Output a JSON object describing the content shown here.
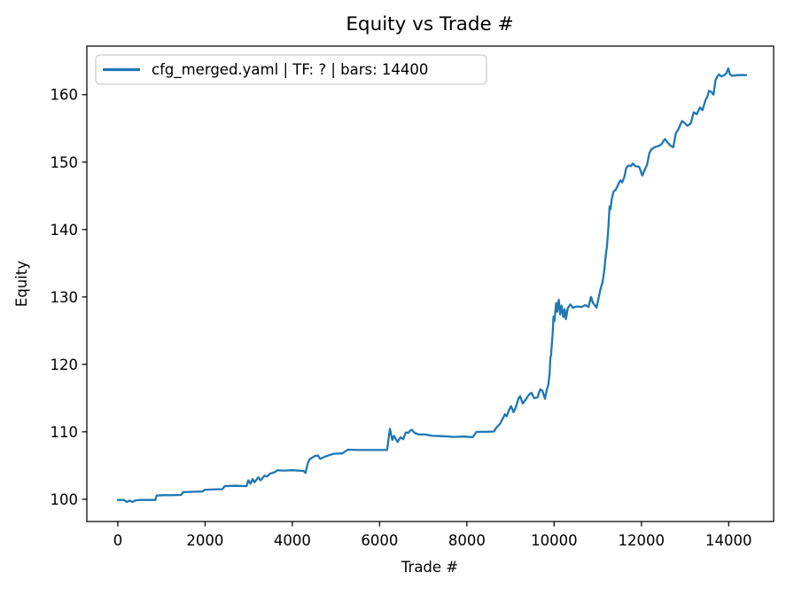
{
  "figure": {
    "background": "#ffffff",
    "spine_color": "#000000",
    "text_color": "#000000"
  },
  "chart_data": {
    "type": "line",
    "title": "Equity vs Trade #",
    "xlabel": "Trade #",
    "ylabel": "Equity",
    "xlim": [
      -710,
      15030
    ],
    "ylim": [
      96.7,
      167.2
    ],
    "xticks": [
      0,
      2000,
      4000,
      6000,
      8000,
      10000,
      12000,
      14000
    ],
    "yticks": [
      100,
      110,
      120,
      130,
      140,
      150,
      160
    ],
    "grid": false,
    "legend": {
      "position": "upper left",
      "entries": [
        {
          "label": "cfg_merged.yaml | TF: ? | bars: 14400",
          "color": "#1f77b4"
        }
      ]
    },
    "series": [
      {
        "name": "cfg_merged.yaml | TF: ? | bars: 14400",
        "color": "#1f77b4",
        "points": [
          [
            0,
            99.9
          ],
          [
            140,
            99.9
          ],
          [
            210,
            99.6
          ],
          [
            270,
            99.8
          ],
          [
            340,
            99.6
          ],
          [
            410,
            99.85
          ],
          [
            520,
            99.9
          ],
          [
            700,
            99.9
          ],
          [
            860,
            99.9
          ],
          [
            890,
            100.55
          ],
          [
            1050,
            100.6
          ],
          [
            1250,
            100.6
          ],
          [
            1450,
            100.65
          ],
          [
            1500,
            101.05
          ],
          [
            1700,
            101.1
          ],
          [
            1940,
            101.15
          ],
          [
            1990,
            101.4
          ],
          [
            2150,
            101.45
          ],
          [
            2400,
            101.5
          ],
          [
            2450,
            101.95
          ],
          [
            2700,
            102.0
          ],
          [
            2950,
            101.95
          ],
          [
            2990,
            102.8
          ],
          [
            3040,
            102.3
          ],
          [
            3090,
            103.0
          ],
          [
            3130,
            102.5
          ],
          [
            3220,
            103.25
          ],
          [
            3270,
            102.8
          ],
          [
            3360,
            103.5
          ],
          [
            3420,
            103.4
          ],
          [
            3490,
            103.8
          ],
          [
            3590,
            104.0
          ],
          [
            3660,
            104.3
          ],
          [
            3800,
            104.25
          ],
          [
            4000,
            104.3
          ],
          [
            4260,
            104.2
          ],
          [
            4300,
            103.9
          ],
          [
            4350,
            105.2
          ],
          [
            4390,
            105.9
          ],
          [
            4440,
            106.1
          ],
          [
            4510,
            106.4
          ],
          [
            4580,
            106.5
          ],
          [
            4640,
            106.0
          ],
          [
            4740,
            106.3
          ],
          [
            4880,
            106.6
          ],
          [
            4950,
            106.75
          ],
          [
            5150,
            106.8
          ],
          [
            5270,
            107.35
          ],
          [
            5500,
            107.3
          ],
          [
            5800,
            107.3
          ],
          [
            6100,
            107.3
          ],
          [
            6170,
            107.3
          ],
          [
            6210,
            109.2
          ],
          [
            6235,
            110.45
          ],
          [
            6290,
            108.8
          ],
          [
            6330,
            109.4
          ],
          [
            6410,
            108.5
          ],
          [
            6480,
            109.2
          ],
          [
            6540,
            108.9
          ],
          [
            6600,
            109.9
          ],
          [
            6660,
            109.85
          ],
          [
            6700,
            110.2
          ],
          [
            6740,
            110.3
          ],
          [
            6800,
            109.85
          ],
          [
            6900,
            109.6
          ],
          [
            7050,
            109.6
          ],
          [
            7200,
            109.4
          ],
          [
            7450,
            109.35
          ],
          [
            7700,
            109.25
          ],
          [
            7950,
            109.3
          ],
          [
            8130,
            109.2
          ],
          [
            8220,
            110.0
          ],
          [
            8450,
            110.0
          ],
          [
            8620,
            110.05
          ],
          [
            8680,
            110.65
          ],
          [
            8760,
            111.2
          ],
          [
            8810,
            111.8
          ],
          [
            8870,
            112.6
          ],
          [
            8910,
            112.3
          ],
          [
            8970,
            113.3
          ],
          [
            9015,
            113.8
          ],
          [
            9070,
            112.9
          ],
          [
            9120,
            113.6
          ],
          [
            9180,
            114.9
          ],
          [
            9220,
            115.3
          ],
          [
            9280,
            114.2
          ],
          [
            9340,
            114.7
          ],
          [
            9420,
            115.5
          ],
          [
            9480,
            115.8
          ],
          [
            9540,
            115.0
          ],
          [
            9620,
            115.1
          ],
          [
            9680,
            116.3
          ],
          [
            9730,
            116.1
          ],
          [
            9790,
            114.9
          ],
          [
            9830,
            116.2
          ],
          [
            9870,
            117.1
          ],
          [
            9895,
            118.6
          ],
          [
            9915,
            121.0
          ],
          [
            9930,
            121.4
          ],
          [
            9945,
            122.8
          ],
          [
            9965,
            124.5
          ],
          [
            9985,
            127.1
          ],
          [
            10005,
            126.4
          ],
          [
            10045,
            129.1
          ],
          [
            10070,
            127.8
          ],
          [
            10105,
            129.6
          ],
          [
            10140,
            127.4
          ],
          [
            10170,
            128.7
          ],
          [
            10210,
            127.0
          ],
          [
            10240,
            128.2
          ],
          [
            10270,
            126.7
          ],
          [
            10310,
            128.3
          ],
          [
            10370,
            128.9
          ],
          [
            10430,
            128.4
          ],
          [
            10520,
            128.6
          ],
          [
            10620,
            128.5
          ],
          [
            10720,
            128.8
          ],
          [
            10790,
            128.5
          ],
          [
            10845,
            130.0
          ],
          [
            10890,
            129.1
          ],
          [
            10940,
            128.7
          ],
          [
            10970,
            128.4
          ],
          [
            11010,
            129.6
          ],
          [
            11060,
            131.1
          ],
          [
            11110,
            132.2
          ],
          [
            11150,
            134.0
          ],
          [
            11180,
            136.0
          ],
          [
            11210,
            137.5
          ],
          [
            11240,
            140.0
          ],
          [
            11270,
            143.4
          ],
          [
            11290,
            143.0
          ],
          [
            11320,
            144.5
          ],
          [
            11360,
            145.6
          ],
          [
            11410,
            145.9
          ],
          [
            11450,
            146.4
          ],
          [
            11490,
            147.0
          ],
          [
            11520,
            147.3
          ],
          [
            11560,
            147.0
          ],
          [
            11610,
            147.8
          ],
          [
            11650,
            149.1
          ],
          [
            11700,
            149.5
          ],
          [
            11760,
            149.4
          ],
          [
            11800,
            149.8
          ],
          [
            11860,
            149.4
          ],
          [
            11950,
            149.3
          ],
          [
            12020,
            148.0
          ],
          [
            12080,
            148.9
          ],
          [
            12130,
            149.6
          ],
          [
            12180,
            151.3
          ],
          [
            12230,
            151.9
          ],
          [
            12300,
            152.2
          ],
          [
            12400,
            152.4
          ],
          [
            12470,
            152.7
          ],
          [
            12500,
            153.1
          ],
          [
            12540,
            153.4
          ],
          [
            12600,
            152.9
          ],
          [
            12670,
            152.4
          ],
          [
            12730,
            152.2
          ],
          [
            12790,
            154.3
          ],
          [
            12850,
            154.9
          ],
          [
            12890,
            155.5
          ],
          [
            12930,
            156.1
          ],
          [
            12990,
            155.8
          ],
          [
            13050,
            155.4
          ],
          [
            13130,
            155.7
          ],
          [
            13200,
            157.4
          ],
          [
            13270,
            157.1
          ],
          [
            13340,
            158.1
          ],
          [
            13400,
            157.7
          ],
          [
            13470,
            159.2
          ],
          [
            13510,
            159.7
          ],
          [
            13550,
            160.6
          ],
          [
            13600,
            160.4
          ],
          [
            13650,
            160.0
          ],
          [
            13700,
            162.2
          ],
          [
            13740,
            162.7
          ],
          [
            13780,
            163.0
          ],
          [
            13830,
            162.7
          ],
          [
            13900,
            162.9
          ],
          [
            13950,
            163.2
          ],
          [
            13990,
            163.9
          ],
          [
            14030,
            163.0
          ],
          [
            14080,
            162.8
          ],
          [
            14200,
            162.9
          ],
          [
            14300,
            162.9
          ],
          [
            14400,
            162.9
          ]
        ]
      }
    ]
  }
}
